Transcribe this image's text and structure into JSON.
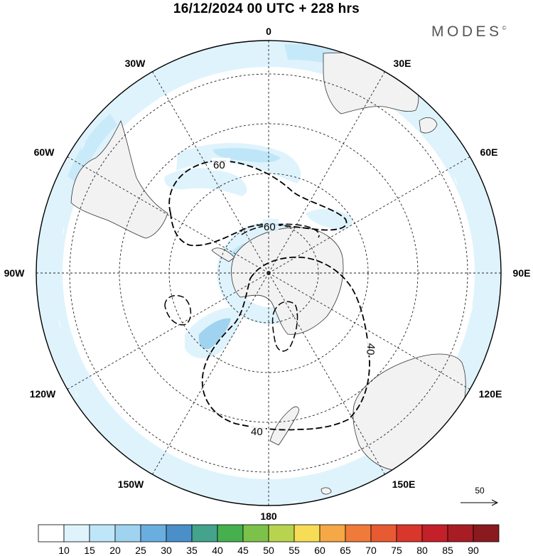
{
  "title": "16/12/2024  00 UTC  + 228 hrs",
  "brand": "MODES",
  "brand_mark": "©",
  "map": {
    "projection": "south-polar-stereographic",
    "longitude_labels": [
      {
        "name": "lon-0",
        "text": "0"
      },
      {
        "name": "lon-30e",
        "text": "30E"
      },
      {
        "name": "lon-60e",
        "text": "60E"
      },
      {
        "name": "lon-90e",
        "text": "90E"
      },
      {
        "name": "lon-120e",
        "text": "120E"
      },
      {
        "name": "lon-150e",
        "text": "150E"
      },
      {
        "name": "lon-180",
        "text": "180"
      },
      {
        "name": "lon-150w",
        "text": "150W"
      },
      {
        "name": "lon-120w",
        "text": "120W"
      },
      {
        "name": "lon-90w",
        "text": "90W"
      },
      {
        "name": "lon-60w",
        "text": "60W"
      },
      {
        "name": "lon-30w",
        "text": "30W"
      }
    ],
    "contour_labels": [
      {
        "name": "contour-label-60-outer",
        "text": "60"
      },
      {
        "name": "contour-label-60-inner",
        "text": "60"
      },
      {
        "name": "contour-label-40-right",
        "text": "40"
      },
      {
        "name": "contour-label-40-bottom",
        "text": "40"
      }
    ],
    "reference_vector": "50",
    "colors": {
      "land": "#f2f2f2",
      "shade_10_15": "#dff3fc",
      "shade_15_20": "#bfe6f8",
      "shade_20_25": "#9fd3f0",
      "grid": "#222222"
    }
  },
  "colorbar": {
    "labels": [
      "10",
      "15",
      "20",
      "25",
      "30",
      "35",
      "40",
      "45",
      "50",
      "55",
      "60",
      "65",
      "70",
      "75",
      "80",
      "85",
      "90"
    ],
    "colors": [
      "#ffffff",
      "#dff3fc",
      "#bfe6f8",
      "#9fd3f0",
      "#6aaee0",
      "#4a8fc8",
      "#43a38c",
      "#46b04e",
      "#7cc24a",
      "#b8d44e",
      "#f6dd55",
      "#f5a845",
      "#f07a3a",
      "#e85a32",
      "#d9362c",
      "#c4202a",
      "#a81d23",
      "#8a1a1e"
    ]
  }
}
